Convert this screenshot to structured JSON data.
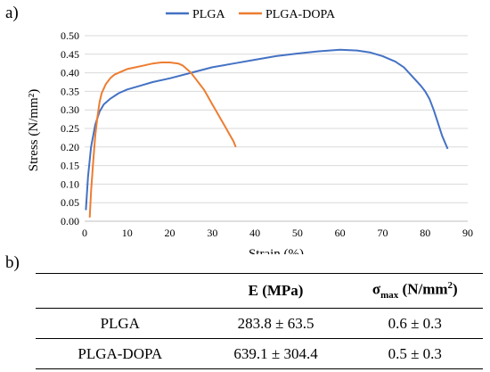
{
  "panel_labels": {
    "a": "a)",
    "b": "b)"
  },
  "chart_data": {
    "type": "line",
    "title": "",
    "xlabel": "Strain (%)",
    "ylabel": "Stress (N/mm²)",
    "xlim": [
      0,
      90
    ],
    "ylim": [
      0,
      0.5
    ],
    "xticks": [
      0,
      10,
      20,
      30,
      40,
      50,
      60,
      70,
      80,
      90
    ],
    "yticks": [
      0.0,
      0.05,
      0.1,
      0.15,
      0.2,
      0.25,
      0.3,
      0.35,
      0.4,
      0.45,
      0.5
    ],
    "grid": "horizontal",
    "legend": "top",
    "series": [
      {
        "name": "PLGA",
        "color": "#4472c4",
        "x": [
          0.3,
          0.8,
          1.5,
          2.5,
          3.5,
          4.5,
          6,
          8,
          10,
          13,
          16,
          20,
          25,
          30,
          35,
          40,
          45,
          50,
          55,
          60,
          64,
          67,
          70,
          73,
          75,
          77,
          79,
          80,
          81,
          82,
          83,
          84,
          85.3
        ],
        "y": [
          0.03,
          0.12,
          0.2,
          0.26,
          0.295,
          0.315,
          0.33,
          0.345,
          0.355,
          0.365,
          0.375,
          0.385,
          0.4,
          0.415,
          0.425,
          0.435,
          0.445,
          0.452,
          0.458,
          0.462,
          0.46,
          0.455,
          0.445,
          0.43,
          0.415,
          0.39,
          0.365,
          0.35,
          0.33,
          0.3,
          0.265,
          0.23,
          0.195
        ]
      },
      {
        "name": "PLGA-DOPA",
        "color": "#ed7d31",
        "x": [
          1.2,
          1.5,
          2,
          2.5,
          3,
          3.5,
          4,
          5,
          6,
          7,
          8,
          10,
          12,
          14,
          16,
          18,
          20,
          22,
          23,
          24,
          25,
          26,
          27,
          28,
          29,
          30,
          31,
          32,
          33,
          34,
          35,
          35.5
        ],
        "y": [
          0.01,
          0.08,
          0.16,
          0.23,
          0.28,
          0.32,
          0.345,
          0.37,
          0.385,
          0.395,
          0.4,
          0.41,
          0.415,
          0.42,
          0.425,
          0.428,
          0.428,
          0.425,
          0.42,
          0.41,
          0.4,
          0.385,
          0.37,
          0.355,
          0.335,
          0.315,
          0.295,
          0.275,
          0.255,
          0.235,
          0.215,
          0.2
        ]
      }
    ]
  },
  "table": {
    "headers": [
      "",
      "E (MPa)",
      "σ",
      "max",
      " (N/mm",
      "2",
      ")"
    ],
    "rows": [
      {
        "label": "PLGA",
        "e": "283.8 ± 63.5",
        "sigma": "0.6 ± 0.3"
      },
      {
        "label": "PLGA-DOPA",
        "e": "639.1 ± 304.4",
        "sigma": "0.5 ± 0.3"
      }
    ]
  }
}
